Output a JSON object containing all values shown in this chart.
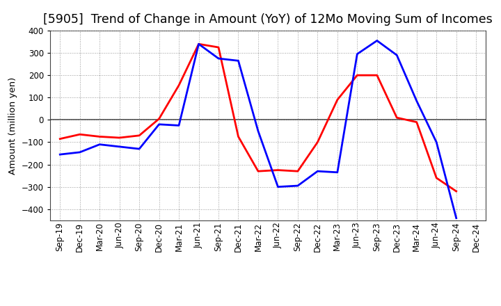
{
  "title": "[5905]  Trend of Change in Amount (YoY) of 12Mo Moving Sum of Incomes",
  "ylabel": "Amount (million yen)",
  "x_labels": [
    "Sep-19",
    "Dec-19",
    "Mar-20",
    "Jun-20",
    "Sep-20",
    "Dec-20",
    "Mar-21",
    "Jun-21",
    "Sep-21",
    "Dec-21",
    "Mar-22",
    "Jun-22",
    "Sep-22",
    "Dec-22",
    "Mar-23",
    "Jun-23",
    "Sep-23",
    "Dec-23",
    "Mar-24",
    "Jun-24",
    "Sep-24",
    "Dec-24"
  ],
  "ordinary_income": [
    -155,
    -145,
    -110,
    -120,
    -130,
    -20,
    -25,
    340,
    275,
    265,
    -50,
    -300,
    -295,
    -230,
    -235,
    295,
    355,
    290,
    85,
    -100,
    -440,
    null
  ],
  "net_income": [
    -85,
    -65,
    -75,
    -80,
    -70,
    5,
    155,
    340,
    325,
    -75,
    -230,
    -225,
    -230,
    -100,
    90,
    200,
    200,
    10,
    -10,
    -260,
    -320,
    null
  ],
  "ordinary_color": "#0000ff",
  "net_color": "#ff0000",
  "ylim": [
    -450,
    400
  ],
  "yticks": [
    -400,
    -300,
    -200,
    -100,
    0,
    100,
    200,
    300,
    400
  ],
  "background_color": "#ffffff",
  "grid_color": "#999999",
  "title_fontsize": 12.5,
  "label_fontsize": 9.5,
  "tick_fontsize": 8.5,
  "legend_fontsize": 10,
  "linewidth": 2.0
}
